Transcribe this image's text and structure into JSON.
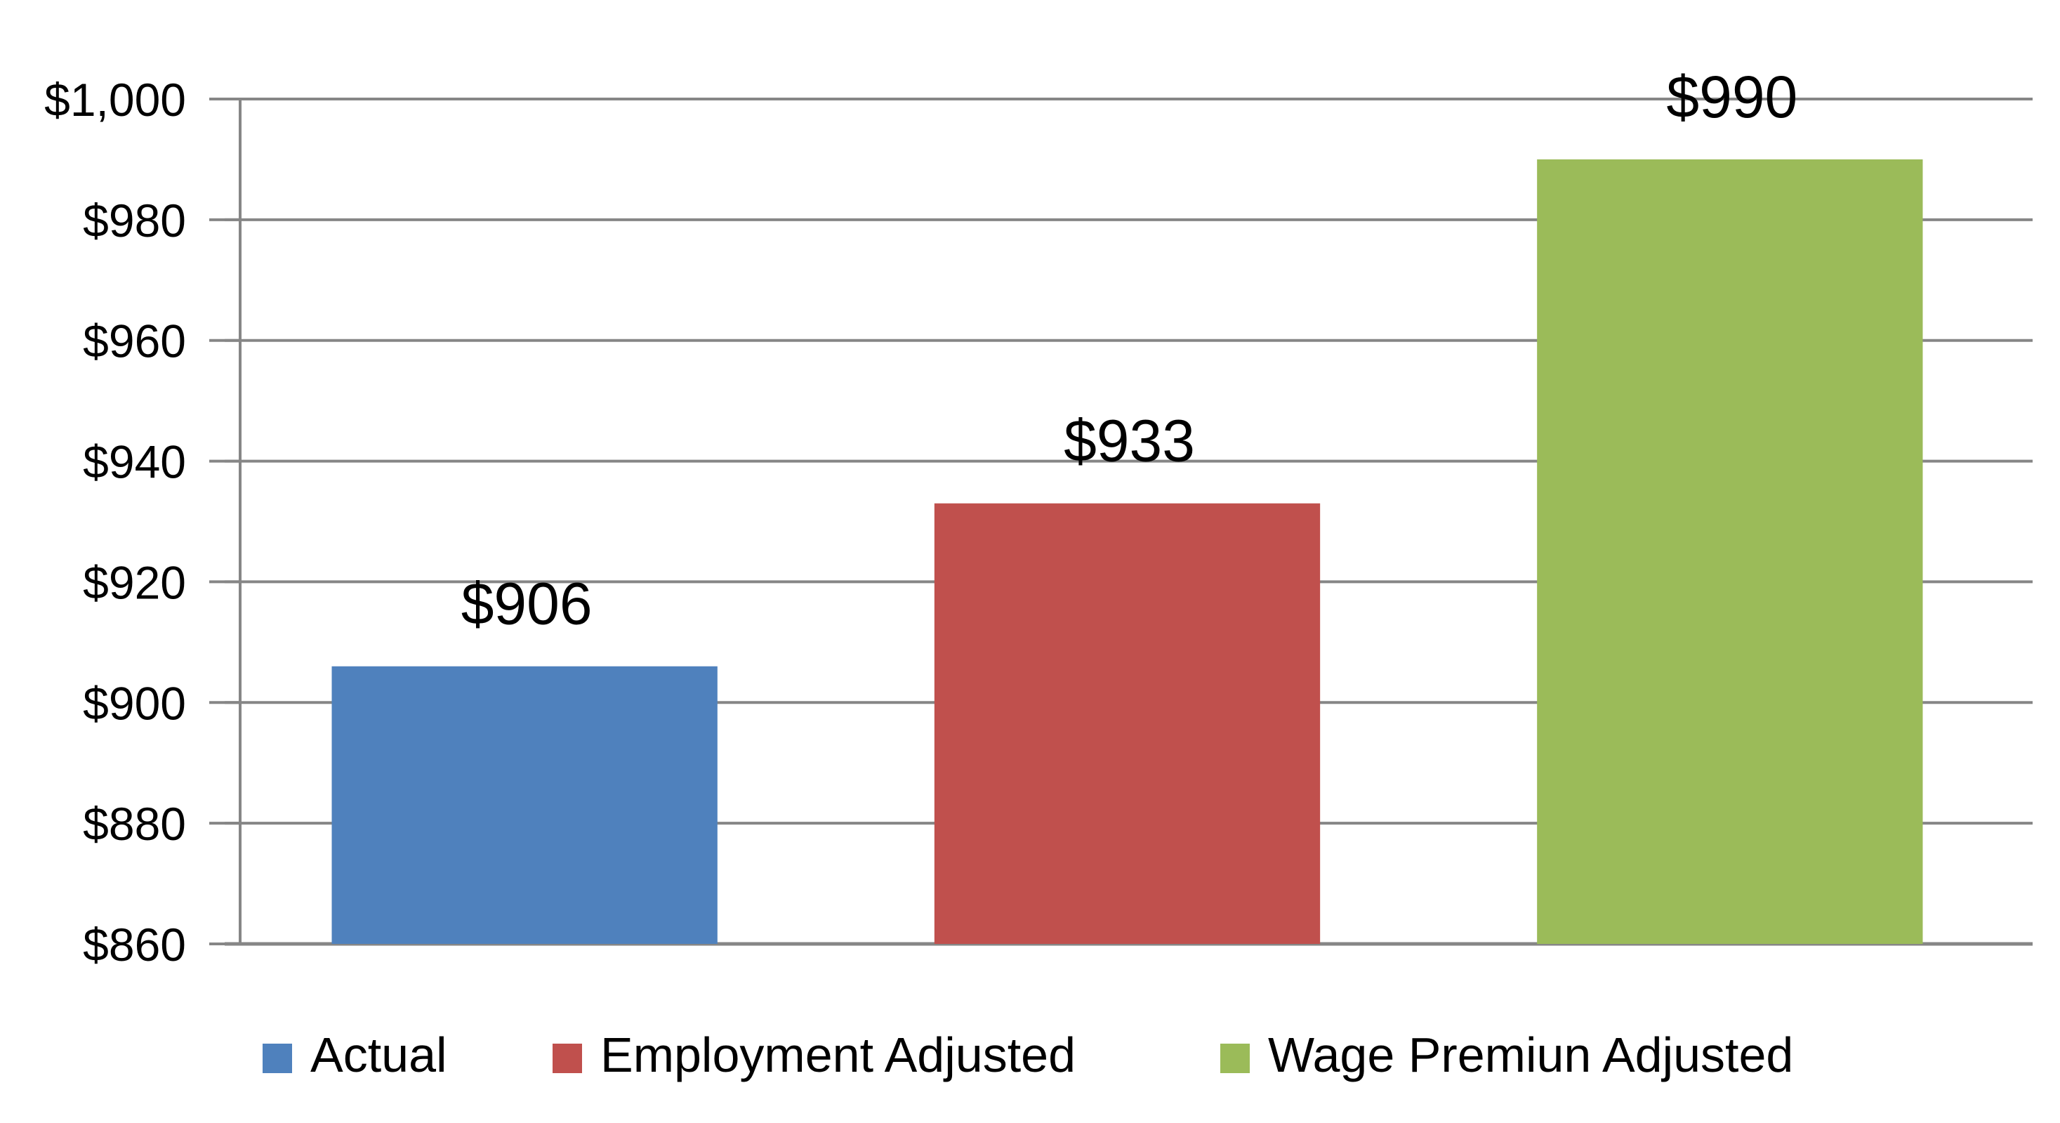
{
  "chart_data": {
    "type": "bar",
    "categories": [
      "Actual",
      "Employment Adjusted",
      "Wage Premiun Adjusted"
    ],
    "values": [
      906,
      933,
      990
    ],
    "data_labels": [
      "$906",
      "$933",
      "$990"
    ],
    "colors": [
      "#4F81BD",
      "#C0504D",
      "#9BBB59"
    ],
    "title": "",
    "xlabel": "",
    "ylabel": "",
    "ylim": [
      860,
      1000
    ],
    "yticks": [
      860,
      880,
      900,
      920,
      940,
      960,
      980,
      1000
    ],
    "ytick_labels": [
      "$860",
      "$880",
      "$900",
      "$920",
      "$940",
      "$960",
      "$980",
      "$1,000"
    ],
    "grid": true,
    "legend": {
      "position": "bottom",
      "entries": [
        "Actual",
        "Employment Adjusted",
        "Wage Premiun Adjusted"
      ]
    }
  }
}
